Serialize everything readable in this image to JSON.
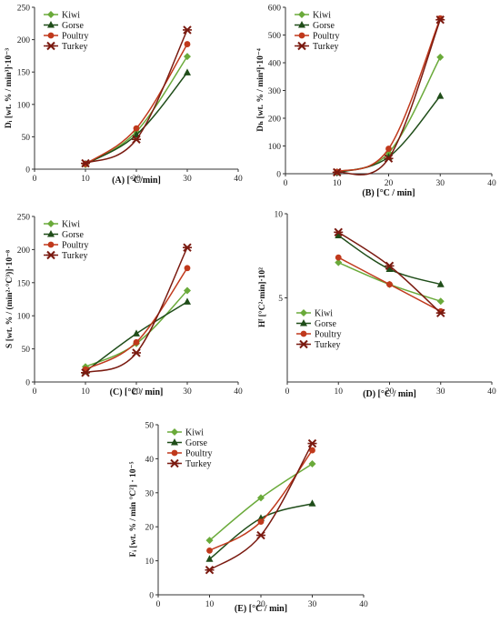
{
  "chart_data": [
    {
      "type": "line",
      "panel": "A",
      "xlabel": "(A) [°C/min]",
      "ylabel": "Dᵢ [wt. % / min³]·10⁻³",
      "xlim": [
        0,
        40
      ],
      "ylim": [
        0,
        250
      ],
      "xticks": [
        0,
        10,
        20,
        30,
        40
      ],
      "yticks": [
        0,
        50,
        100,
        150,
        200,
        250
      ],
      "legend": "top-left",
      "series": [
        {
          "name": "Kiwi",
          "x": [
            10,
            20,
            30
          ],
          "values": [
            7,
            58,
            174
          ]
        },
        {
          "name": "Gorse",
          "x": [
            10,
            20,
            30
          ],
          "values": [
            8,
            53,
            149
          ]
        },
        {
          "name": "Poultry",
          "x": [
            10,
            20,
            30
          ],
          "values": [
            8,
            63,
            193
          ]
        },
        {
          "name": "Turkey",
          "x": [
            10,
            20,
            30
          ],
          "values": [
            9,
            46,
            215
          ]
        }
      ]
    },
    {
      "type": "line",
      "panel": "B",
      "xlabel": "(B) [°C / min]",
      "ylabel": "Dₕ [wt. % / min⁴]·10⁻⁴",
      "xlim": [
        0,
        40
      ],
      "ylim": [
        0,
        600
      ],
      "xticks": [
        0,
        10,
        20,
        30,
        40
      ],
      "yticks": [
        0,
        100,
        200,
        300,
        400,
        500,
        600
      ],
      "legend": "top-left",
      "series": [
        {
          "name": "Kiwi",
          "x": [
            10,
            20,
            30
          ],
          "values": [
            6,
            75,
            420
          ]
        },
        {
          "name": "Gorse",
          "x": [
            10,
            20,
            30
          ],
          "values": [
            4,
            60,
            280
          ]
        },
        {
          "name": "Poultry",
          "x": [
            10,
            20,
            30
          ],
          "values": [
            7,
            90,
            560
          ]
        },
        {
          "name": "Turkey",
          "x": [
            10,
            20,
            30
          ],
          "values": [
            5,
            55,
            555
          ]
        }
      ]
    },
    {
      "type": "line",
      "panel": "C",
      "xlabel": "(C) [°C / min]",
      "ylabel": "S [wt. % / (min²·°C³)]·10⁻⁸",
      "xlim": [
        0,
        40
      ],
      "ylim": [
        0,
        250
      ],
      "xticks": [
        0,
        10,
        20,
        30,
        40
      ],
      "yticks": [
        0,
        50,
        100,
        150,
        200,
        250
      ],
      "legend": "top-left",
      "series": [
        {
          "name": "Kiwi",
          "x": [
            10,
            20,
            30
          ],
          "values": [
            23,
            58,
            138
          ]
        },
        {
          "name": "Gorse",
          "x": [
            10,
            20,
            30
          ],
          "values": [
            16,
            73,
            121
          ]
        },
        {
          "name": "Poultry",
          "x": [
            10,
            20,
            30
          ],
          "values": [
            19,
            60,
            172
          ]
        },
        {
          "name": "Turkey",
          "x": [
            10,
            20,
            30
          ],
          "values": [
            14,
            44,
            203
          ]
        }
      ]
    },
    {
      "type": "line",
      "panel": "D",
      "xlabel": "(D) [°C / min]",
      "ylabel": "Hᶠ [°C²·min]·10²",
      "xlim": [
        0,
        40
      ],
      "ylim": [
        0,
        10
      ],
      "xticks": [
        0,
        10,
        20,
        30,
        40
      ],
      "yticks": [
        5,
        10
      ],
      "legend": "bottom-left",
      "series": [
        {
          "name": "Kiwi",
          "x": [
            10,
            20,
            30
          ],
          "values": [
            7.1,
            5.8,
            4.8
          ]
        },
        {
          "name": "Gorse",
          "x": [
            10,
            20,
            30
          ],
          "values": [
            8.7,
            6.7,
            5.8
          ]
        },
        {
          "name": "Poultry",
          "x": [
            10,
            20,
            30
          ],
          "values": [
            7.4,
            5.8,
            4.2
          ]
        },
        {
          "name": "Turkey",
          "x": [
            10,
            20,
            30
          ],
          "values": [
            8.9,
            6.9,
            4.1
          ]
        }
      ]
    },
    {
      "type": "line",
      "panel": "E",
      "xlabel": "(E) [°C / min]",
      "ylabel": "Fᵢ [wt. % / min °C²] · 10⁻⁵",
      "xlim": [
        0,
        40
      ],
      "ylim": [
        0,
        50
      ],
      "xticks": [
        0,
        10,
        20,
        30,
        40
      ],
      "yticks": [
        0,
        10,
        20,
        30,
        40,
        50
      ],
      "legend": "top-left",
      "series": [
        {
          "name": "Kiwi",
          "x": [
            10,
            20,
            30
          ],
          "values": [
            16,
            28.5,
            38.5
          ]
        },
        {
          "name": "Gorse",
          "x": [
            10,
            20,
            30
          ],
          "values": [
            10.5,
            22.5,
            26.8
          ]
        },
        {
          "name": "Poultry",
          "x": [
            10,
            20,
            30
          ],
          "values": [
            13,
            21.5,
            42.5
          ]
        },
        {
          "name": "Turkey",
          "x": [
            10,
            20,
            30
          ],
          "values": [
            7.3,
            17.5,
            44.5
          ]
        }
      ]
    }
  ],
  "styles": {
    "Kiwi": {
      "color": "#6aaa3a",
      "marker": "diamond"
    },
    "Gorse": {
      "color": "#1f4d19",
      "marker": "triangle"
    },
    "Poultry": {
      "color": "#c0391c",
      "marker": "circle"
    },
    "Turkey": {
      "color": "#7a1a10",
      "marker": "x"
    }
  }
}
